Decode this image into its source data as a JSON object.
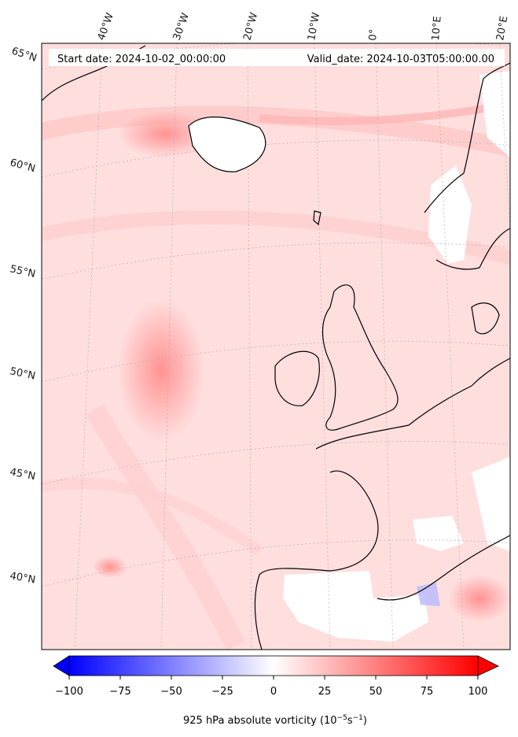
{
  "header": {
    "start_date": "Start date: 2024-10-02_00:00:00",
    "valid_date": "Valid_date: 2024-10-03T05:00:00.00"
  },
  "longitude_labels": [
    "40°W",
    "30°W",
    "20°W",
    "10°W",
    "0°",
    "10°E",
    "20°E"
  ],
  "latitude_labels": [
    "65°N",
    "60°N",
    "55°N",
    "50°N",
    "45°N",
    "40°N"
  ],
  "colorbar": {
    "min": -100,
    "max": 100,
    "ticks": [
      "−100",
      "−75",
      "−50",
      "−25",
      "0",
      "25",
      "50",
      "75",
      "100"
    ],
    "title_main": "925 hPa absolute vorticity (10",
    "title_exp1": "−5",
    "title_mid": "s",
    "title_exp2": "−1",
    "title_end": ")",
    "colors": {
      "negative": "#0000ff",
      "zero": "#ffffff",
      "positive": "#ff0000"
    }
  },
  "colors": {
    "field_background": "#ffdede",
    "coastline": "#000000",
    "gridline": "#b0b0b0"
  }
}
